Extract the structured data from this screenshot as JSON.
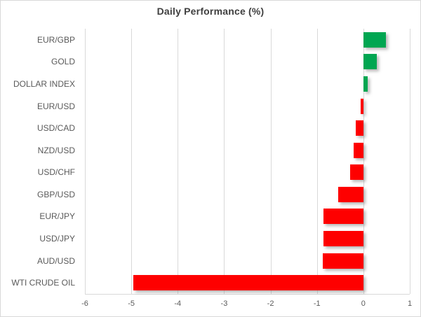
{
  "chart_data": {
    "type": "bar",
    "orientation": "horizontal",
    "title": "Daily Performance (%)",
    "categories": [
      "EUR/GBP",
      "GOLD",
      "DOLLAR INDEX",
      "EUR/USD",
      "USD/CAD",
      "NZD/USD",
      "USD/CHF",
      "GBP/USD",
      "EUR/JPY",
      "USD/JPY",
      "AUD/USD",
      "WTI CRUDE OIL"
    ],
    "values": [
      0.48,
      0.29,
      0.1,
      -0.06,
      -0.16,
      -0.21,
      -0.28,
      -0.54,
      -0.86,
      -0.86,
      -0.88,
      -4.95
    ],
    "xlabel": "",
    "ylabel": "",
    "xlim": [
      -6,
      1
    ],
    "x_ticks": [
      -6,
      -5,
      -4,
      -3,
      -2,
      -1,
      0,
      1
    ],
    "grid": "vertical",
    "legend": "none",
    "positive_color": "#00A651",
    "negative_color": "#FE0000",
    "gridline_color": "#d9d9d9",
    "label_color": "#595959",
    "title_color": "#404040"
  }
}
